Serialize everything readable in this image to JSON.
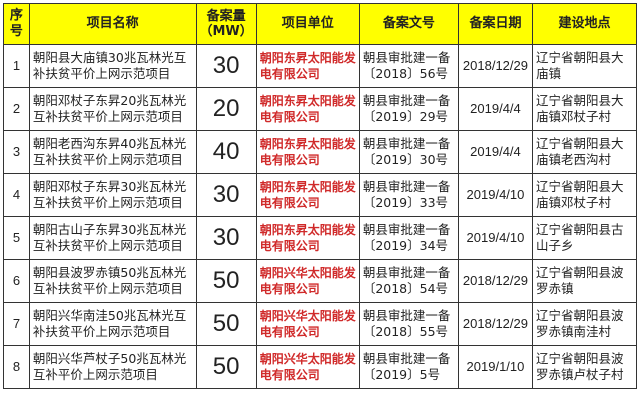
{
  "headers": [
    "序号",
    "项目名称",
    "备案量（MW）",
    "项目单位",
    "备案文号",
    "备案日期",
    "建设地点"
  ],
  "rows": [
    {
      "no": "1",
      "name": "朝阳县大庙镇30兆瓦林光互补扶贫平价上网示范项目",
      "mw": "30",
      "unit": "朝阳东昇太阳能发电有限公司",
      "doc": "朝县审批建一备〔2018〕56号",
      "date": "2018/12/29",
      "site": "辽宁省朝阳县大庙镇"
    },
    {
      "no": "2",
      "name": "朝阳邓杖子东昇20兆瓦林光互补扶贫平价上网示范项目",
      "mw": "20",
      "unit": "朝阳东昇太阳能发电有限公司",
      "doc": "朝县审批建一备〔2019〕29号",
      "date": "2019/4/4",
      "site": "辽宁省朝阳县大庙镇邓杖子村"
    },
    {
      "no": "3",
      "name": "朝阳老西沟东昇40兆瓦林光互补扶贫平价上网示范项目",
      "mw": "40",
      "unit": "朝阳东昇太阳能发电有限公司",
      "doc": "朝县审批建一备〔2019〕30号",
      "date": "2019/4/4",
      "site": "辽宁省朝阳县大庙镇老西沟村"
    },
    {
      "no": "4",
      "name": "朝阳邓杖子东昇30兆瓦林光互补扶贫平价上网示范项目",
      "mw": "30",
      "unit": "朝阳东昇太阳能发电有限公司",
      "doc": "朝县审批建一备〔2019〕33号",
      "date": "2019/4/10",
      "site": "辽宁省朝阳县大庙镇邓杖子村"
    },
    {
      "no": "5",
      "name": "朝阳古山子东昇30兆瓦林光互补扶贫平价上网示范项目",
      "mw": "30",
      "unit": "朝阳东昇太阳能发电有限公司",
      "doc": "朝县审批建一备〔2019〕34号",
      "date": "2019/4/10",
      "site": "辽宁省朝阳县古山子乡"
    },
    {
      "no": "6",
      "name": "朝阳县波罗赤镇50兆瓦林光互补扶贫平价上网示范项目",
      "mw": "50",
      "unit": "朝阳兴华太阳能发电有限公司",
      "doc": "朝县审批建一备〔2018〕54号",
      "date": "2018/12/29",
      "site": "辽宁省朝阳县波罗赤镇"
    },
    {
      "no": "7",
      "name": "朝阳兴华南洼50兆瓦林光互补扶贫平价上网示范项目",
      "mw": "50",
      "unit": "朝阳兴华太阳能发电有限公司",
      "doc": "朝县审批建一备〔2018〕55号",
      "date": "2018/12/29",
      "site": "辽宁省朝阳县波罗赤镇南洼村"
    },
    {
      "no": "8",
      "name": "朝阳兴华芦杖子50兆瓦林光互补平价上网示范项目",
      "mw": "50",
      "unit": "朝阳兴华太阳能发电有限公司",
      "doc": "朝县审批建一备〔2019〕5号",
      "date": "2019/1/10",
      "site": "辽宁省朝阳县波罗赤镇卢杖子村"
    }
  ]
}
